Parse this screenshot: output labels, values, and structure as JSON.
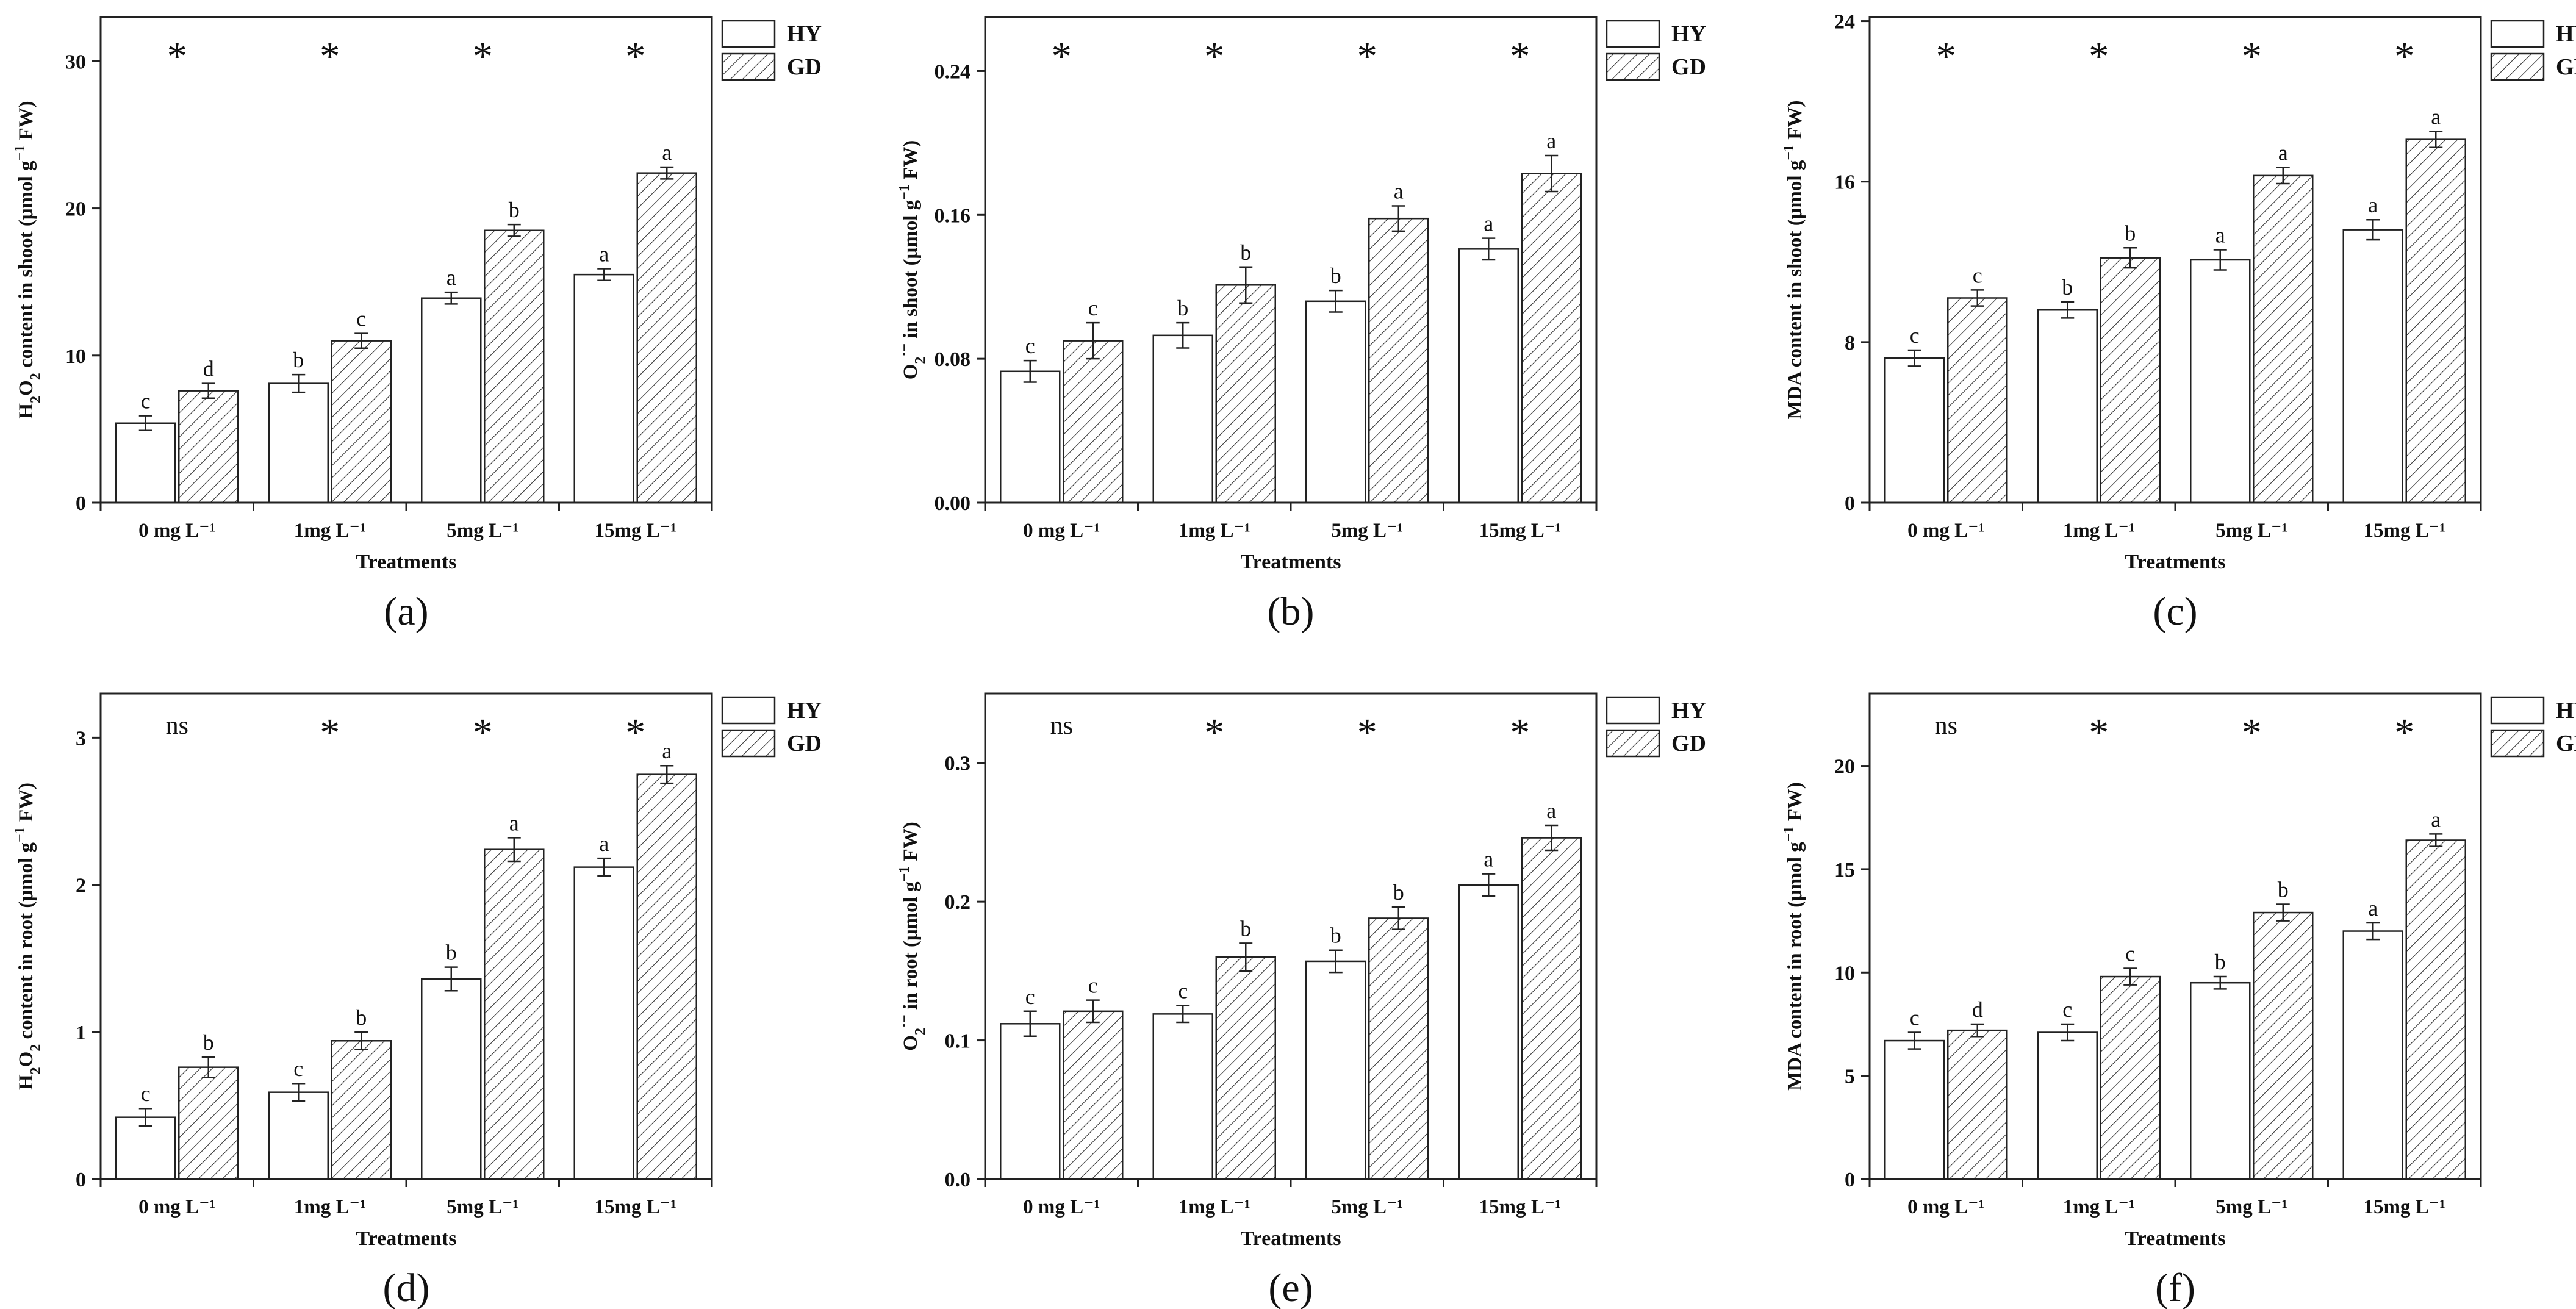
{
  "figure": {
    "legend_labels": [
      "HY",
      "GD"
    ],
    "panels": [
      {
        "label": "(a)",
        "chart_title": "",
        "ylabel_parts": [
          {
            "t": "H"
          },
          {
            "t": "2",
            "sub": true
          },
          {
            "t": "O"
          },
          {
            "t": "2",
            "sub": true
          },
          {
            "t": " content in shoot (μmol g"
          },
          {
            "t": "−1",
            "sup": true
          },
          {
            "t": " FW)"
          }
        ]
      },
      {
        "label": "(b)",
        "chart_title": "",
        "ylabel_parts": [
          {
            "t": "O"
          },
          {
            "t": "2",
            "sub": true
          },
          {
            "t": "·−",
            "sup": true
          },
          {
            "t": " in shoot (μmol g"
          },
          {
            "t": "−1",
            "sup": true
          },
          {
            "t": " FW)"
          }
        ]
      },
      {
        "label": "(c)",
        "chart_title": "",
        "ylabel_parts": [
          {
            "t": "MDA content in shoot (μmol g"
          },
          {
            "t": "−1",
            "sup": true
          },
          {
            "t": " FW)"
          }
        ]
      },
      {
        "label": "(d)",
        "chart_title": "",
        "ylabel_parts": [
          {
            "t": "H"
          },
          {
            "t": "2",
            "sub": true
          },
          {
            "t": "O"
          },
          {
            "t": "2",
            "sub": true
          },
          {
            "t": " content in root (μmol g"
          },
          {
            "t": "−1",
            "sup": true
          },
          {
            "t": " FW)"
          }
        ]
      },
      {
        "label": "(e)",
        "chart_title": "",
        "ylabel_parts": [
          {
            "t": "O"
          },
          {
            "t": "2",
            "sub": true
          },
          {
            "t": "·−",
            "sup": true
          },
          {
            "t": " in root (μmol g"
          },
          {
            "t": "−1",
            "sup": true
          },
          {
            "t": " FW)"
          }
        ]
      },
      {
        "label": "(f)",
        "chart_title": "",
        "ylabel_parts": [
          {
            "t": "MDA content in root (μmol g"
          },
          {
            "t": "−1",
            "sup": true
          },
          {
            "t": " FW)"
          }
        ]
      }
    ]
  },
  "chart_data": [
    {
      "type": "bar",
      "panel": "(a)",
      "title": "",
      "xlabel": "Treatments",
      "ylabel": "H2O2 content in shoot (μmol g−1 FW)",
      "categories": [
        "0 mg L⁻¹",
        "1mg L⁻¹",
        "5mg L⁻¹",
        "15mg L⁻¹"
      ],
      "ylim": [
        0,
        33
      ],
      "yticks": [
        0,
        10,
        20,
        30
      ],
      "ytick_labels": [
        "0",
        "10",
        "20",
        "30"
      ],
      "significance": [
        "*",
        "*",
        "*",
        "*"
      ],
      "series": [
        {
          "name": "HY",
          "values": [
            5.4,
            8.1,
            13.9,
            15.5
          ],
          "errors": [
            0.5,
            0.6,
            0.4,
            0.4
          ],
          "letters": [
            "c",
            "b",
            "a",
            "a"
          ]
        },
        {
          "name": "GD",
          "values": [
            7.6,
            11.0,
            18.5,
            22.4
          ],
          "errors": [
            0.5,
            0.5,
            0.4,
            0.4
          ],
          "letters": [
            "d",
            "c",
            "b",
            "a"
          ]
        }
      ]
    },
    {
      "type": "bar",
      "panel": "(b)",
      "title": "",
      "xlabel": "Treatments",
      "ylabel": "O2·− in shoot (μmol g−1 FW)",
      "categories": [
        "0 mg L⁻¹",
        "1mg L⁻¹",
        "5mg L⁻¹",
        "15mg L⁻¹"
      ],
      "ylim": [
        0,
        0.27
      ],
      "yticks": [
        0,
        0.08,
        0.16,
        0.24
      ],
      "ytick_labels": [
        "0.00",
        "0.08",
        "0.16",
        "0.24"
      ],
      "significance": [
        "*",
        "*",
        "*",
        "*"
      ],
      "series": [
        {
          "name": "HY",
          "values": [
            0.073,
            0.093,
            0.112,
            0.141
          ],
          "errors": [
            0.006,
            0.007,
            0.006,
            0.006
          ],
          "letters": [
            "c",
            "b",
            "b",
            "a"
          ]
        },
        {
          "name": "GD",
          "values": [
            0.09,
            0.121,
            0.158,
            0.183
          ],
          "errors": [
            0.01,
            0.01,
            0.007,
            0.01
          ],
          "letters": [
            "c",
            "b",
            "a",
            "a"
          ]
        }
      ]
    },
    {
      "type": "bar",
      "panel": "(c)",
      "title": "",
      "xlabel": "Treatments",
      "ylabel": "MDA content in shoot (μmol g−1 FW)",
      "categories": [
        "0 mg L⁻¹",
        "1mg L⁻¹",
        "5mg L⁻¹",
        "15mg L⁻¹"
      ],
      "ylim": [
        0,
        24.2
      ],
      "yticks": [
        0,
        8,
        16,
        24
      ],
      "ytick_labels": [
        "0",
        "8",
        "16",
        "24"
      ],
      "significance": [
        "*",
        "*",
        "*",
        "*"
      ],
      "series": [
        {
          "name": "HY",
          "values": [
            7.2,
            9.6,
            12.1,
            13.6
          ],
          "errors": [
            0.4,
            0.4,
            0.5,
            0.5
          ],
          "letters": [
            "c",
            "b",
            "a",
            "a"
          ]
        },
        {
          "name": "GD",
          "values": [
            10.2,
            12.2,
            16.3,
            18.1
          ],
          "errors": [
            0.4,
            0.5,
            0.4,
            0.4
          ],
          "letters": [
            "c",
            "b",
            "a",
            "a"
          ]
        }
      ]
    },
    {
      "type": "bar",
      "panel": "(d)",
      "title": "",
      "xlabel": "Treatments",
      "ylabel": "H2O2 content in root (μmol g−1 FW)",
      "categories": [
        "0 mg L⁻¹",
        "1mg L⁻¹",
        "5mg L⁻¹",
        "15mg L⁻¹"
      ],
      "ylim": [
        0,
        3.3
      ],
      "yticks": [
        0,
        1,
        2,
        3
      ],
      "ytick_labels": [
        "0",
        "1",
        "2",
        "3"
      ],
      "significance": [
        "ns",
        "*",
        "*",
        "*"
      ],
      "series": [
        {
          "name": "HY",
          "values": [
            0.42,
            0.59,
            1.36,
            2.12
          ],
          "errors": [
            0.06,
            0.06,
            0.08,
            0.06
          ],
          "letters": [
            "c",
            "c",
            "b",
            "a"
          ]
        },
        {
          "name": "GD",
          "values": [
            0.76,
            0.94,
            2.24,
            2.75
          ],
          "errors": [
            0.07,
            0.06,
            0.08,
            0.06
          ],
          "letters": [
            "b",
            "b",
            "a",
            "a"
          ]
        }
      ]
    },
    {
      "type": "bar",
      "panel": "(e)",
      "title": "",
      "xlabel": "Treatments",
      "ylabel": "O2·− in root (μmol g−1 FW)",
      "categories": [
        "0 mg L⁻¹",
        "1mg L⁻¹",
        "5mg L⁻¹",
        "15mg L⁻¹"
      ],
      "ylim": [
        0,
        0.35
      ],
      "yticks": [
        0,
        0.1,
        0.2,
        0.3
      ],
      "ytick_labels": [
        "0.0",
        "0.1",
        "0.2",
        "0.3"
      ],
      "significance": [
        "ns",
        "*",
        "*",
        "*"
      ],
      "series": [
        {
          "name": "HY",
          "values": [
            0.112,
            0.119,
            0.157,
            0.212
          ],
          "errors": [
            0.009,
            0.006,
            0.008,
            0.008
          ],
          "letters": [
            "c",
            "c",
            "b",
            "a"
          ]
        },
        {
          "name": "GD",
          "values": [
            0.121,
            0.16,
            0.188,
            0.246
          ],
          "errors": [
            0.008,
            0.01,
            0.008,
            0.009
          ],
          "letters": [
            "c",
            "b",
            "b",
            "a"
          ]
        }
      ]
    },
    {
      "type": "bar",
      "panel": "(f)",
      "title": "",
      "xlabel": "Treatments",
      "ylabel": "MDA content in root (μmol g−1 FW)",
      "categories": [
        "0 mg L⁻¹",
        "1mg L⁻¹",
        "5mg L⁻¹",
        "15mg L⁻¹"
      ],
      "ylim": [
        0,
        23.5
      ],
      "yticks": [
        0,
        5,
        10,
        15,
        20
      ],
      "ytick_labels": [
        "0",
        "5",
        "10",
        "15",
        "20"
      ],
      "significance": [
        "ns",
        "*",
        "*",
        "*"
      ],
      "series": [
        {
          "name": "HY",
          "values": [
            6.7,
            7.1,
            9.5,
            12.0
          ],
          "errors": [
            0.4,
            0.4,
            0.3,
            0.4
          ],
          "letters": [
            "c",
            "c",
            "b",
            "a"
          ]
        },
        {
          "name": "GD",
          "values": [
            7.2,
            9.8,
            12.9,
            16.4
          ],
          "errors": [
            0.3,
            0.4,
            0.4,
            0.3
          ],
          "letters": [
            "d",
            "c",
            "b",
            "a"
          ]
        }
      ]
    }
  ]
}
